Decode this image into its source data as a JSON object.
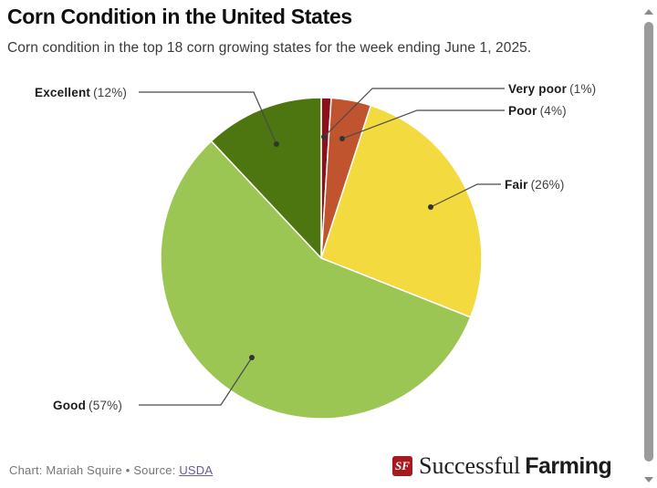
{
  "page": {
    "title": "Corn Condition in the United States",
    "subtitle": "Corn condition in the top 18 corn growing states for the week ending June 1, 2025."
  },
  "chart_data": {
    "type": "pie",
    "title": "Corn Condition in the United States",
    "start_angle_deg": 0,
    "direction": "clockwise",
    "units": "percent",
    "slices": [
      {
        "label": "Very poor",
        "value": 1,
        "pct_text": "(1%)",
        "color": "#8e101c"
      },
      {
        "label": "Poor",
        "value": 4,
        "pct_text": "(4%)",
        "color": "#c0542f"
      },
      {
        "label": "Fair",
        "value": 26,
        "pct_text": "(26%)",
        "color": "#f3da3e"
      },
      {
        "label": "Good",
        "value": 57,
        "pct_text": "(57%)",
        "color": "#9cc653"
      },
      {
        "label": "Excellent",
        "value": 12,
        "pct_text": "(12%)",
        "color": "#4d7611"
      }
    ],
    "legend_position": "callout-labels",
    "leader_line_color": "#4a4a4a"
  },
  "footer": {
    "credit_prefix": "Chart: Mariah Squire • Source: ",
    "source_link": "USDA",
    "logo": {
      "badge_text": "SF",
      "badge_color": "#a6191e",
      "name_serif": "Successful",
      "name_bold": "Farming"
    }
  }
}
